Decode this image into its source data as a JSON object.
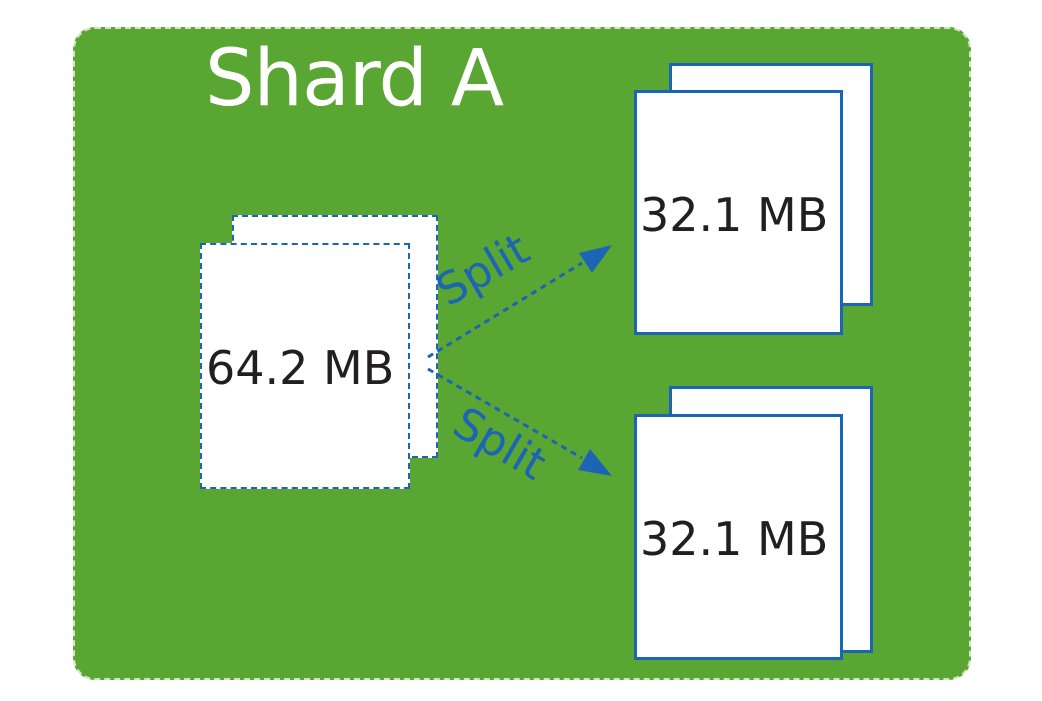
{
  "shard": {
    "title": "Shard A",
    "background_color": "#5aa632"
  },
  "source_chunk": {
    "size_label": "64.2 MB",
    "border_style": "dashed"
  },
  "split_edges": [
    {
      "label": "Split"
    },
    {
      "label": "Split"
    }
  ],
  "result_chunks": [
    {
      "size_label": "32.1 MB",
      "border_style": "solid"
    },
    {
      "size_label": "32.1 MB",
      "border_style": "solid"
    }
  ],
  "colors": {
    "accent": "#1c64b4",
    "text": "#231f20",
    "page": "#ffffff"
  }
}
